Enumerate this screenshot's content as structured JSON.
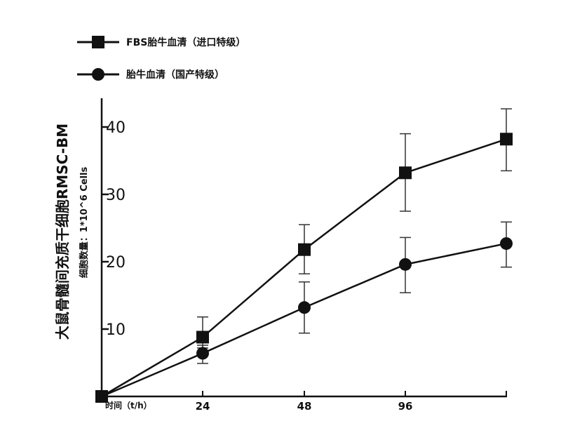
{
  "chart_data": {
    "type": "line",
    "x": [
      0,
      24,
      48,
      96,
      120
    ],
    "xtick_labels": [
      "24",
      "48",
      "96"
    ],
    "xtick_values": [
      24,
      48,
      96
    ],
    "ylim": [
      0,
      45
    ],
    "yticks": [
      10,
      20,
      30,
      40
    ],
    "xlabel": "时间（t/h）",
    "ylabel": "大鼠骨髓间充质干细胞RMSC-BM",
    "ylabel_sub": "细胞数量：1*10^6 Cells",
    "legend_position": "top-left",
    "grid": false,
    "series": [
      {
        "name": "FBS胎牛血清（进口特级）",
        "marker": "square",
        "color": "#111111",
        "values": [
          0,
          8.8,
          21.8,
          33.2,
          38.2
        ],
        "err_low": [
          0,
          7.2,
          18.2,
          27.5,
          33.5
        ],
        "err_high": [
          0,
          11.8,
          25.5,
          39.0,
          42.7
        ]
      },
      {
        "name": "胎牛血清（国产特级）",
        "marker": "circle",
        "color": "#111111",
        "values": [
          0,
          6.4,
          13.2,
          19.6,
          22.7
        ],
        "err_low": [
          0,
          4.9,
          9.4,
          15.4,
          19.2
        ],
        "err_high": [
          0,
          7.6,
          17.0,
          23.6,
          25.9
        ]
      }
    ]
  }
}
